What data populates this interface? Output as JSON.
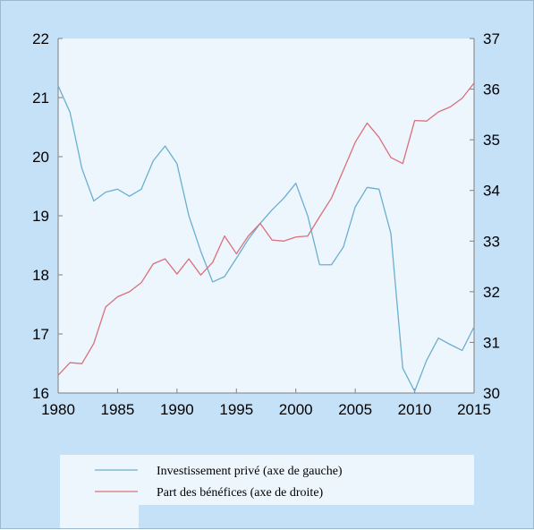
{
  "chart_data": {
    "type": "line",
    "title": "",
    "xlabel": "",
    "ylabel_left": "",
    "ylabel_right": "",
    "x": [
      1980,
      1981,
      1982,
      1983,
      1984,
      1985,
      1986,
      1987,
      1988,
      1989,
      1990,
      1991,
      1992,
      1993,
      1994,
      1995,
      1996,
      1997,
      1998,
      1999,
      2000,
      2001,
      2002,
      2003,
      2004,
      2005,
      2006,
      2007,
      2008,
      2009,
      2010,
      2011,
      2012,
      2013,
      2014,
      2015
    ],
    "xlim": [
      1980,
      2015
    ],
    "xticks": [
      1980,
      1985,
      1990,
      1995,
      2000,
      2005,
      2010,
      2015
    ],
    "ylim_left": [
      16,
      22
    ],
    "yticks_left": [
      16,
      17,
      18,
      19,
      20,
      21,
      22
    ],
    "ylim_right": [
      30,
      37
    ],
    "yticks_right": [
      30,
      31,
      32,
      33,
      34,
      35,
      36,
      37
    ],
    "grid": false,
    "legend_position": "bottom",
    "series": [
      {
        "name": "Investissement privé (axe de gauche)",
        "axis": "left",
        "color": "#6aafd0",
        "values": [
          21.2,
          20.75,
          19.8,
          19.25,
          19.4,
          19.45,
          19.33,
          19.45,
          19.93,
          20.18,
          19.88,
          19.0,
          18.4,
          17.88,
          17.97,
          18.28,
          18.6,
          18.87,
          19.1,
          19.3,
          19.55,
          19.0,
          18.17,
          18.17,
          18.47,
          19.15,
          19.48,
          19.45,
          18.7,
          16.42,
          16.03,
          16.55,
          16.93,
          16.82,
          16.72,
          17.12
        ]
      },
      {
        "name": "Part des bénéfices (axe de droite)",
        "axis": "right",
        "color": "#d9707a",
        "values": [
          30.35,
          30.6,
          30.58,
          30.98,
          31.7,
          31.9,
          32.0,
          32.18,
          32.55,
          32.65,
          32.35,
          32.65,
          32.33,
          32.58,
          33.1,
          32.75,
          33.1,
          33.35,
          33.02,
          33.0,
          33.08,
          33.1,
          33.48,
          33.85,
          34.4,
          34.95,
          35.33,
          35.05,
          34.65,
          34.53,
          35.38,
          35.37,
          35.55,
          35.65,
          35.82,
          36.12
        ]
      }
    ]
  }
}
